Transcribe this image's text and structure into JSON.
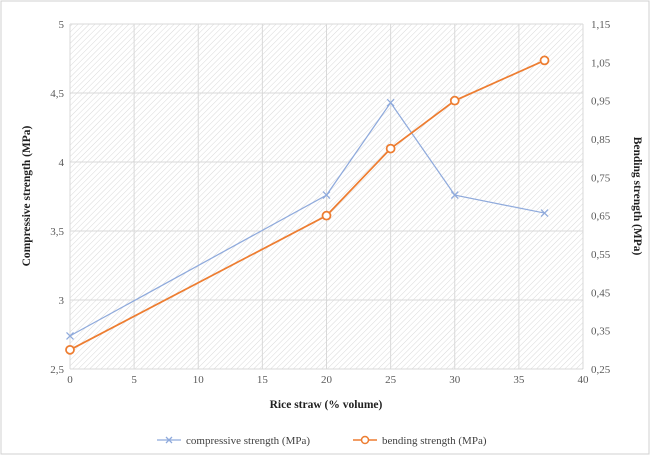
{
  "chart_data": {
    "type": "line",
    "title": "",
    "xlabel": "Rice straw (% volume)",
    "ylabel": "Compressive strength (MPa)",
    "y2label": "Bending strength (MPa)",
    "xlim": [
      0,
      40
    ],
    "ylim": [
      2.5,
      5
    ],
    "y2lim": [
      0.25,
      1.15
    ],
    "x_ticks": [
      "0",
      "5",
      "10",
      "15",
      "20",
      "25",
      "30",
      "35",
      "40"
    ],
    "y_ticks": [
      "2,5",
      "3",
      "3,5",
      "4",
      "4,5",
      "5"
    ],
    "y2_ticks": [
      "0,25",
      "0,35",
      "0,45",
      "0,55",
      "0,65",
      "0,75",
      "0,85",
      "0,95",
      "1,05",
      "1,15"
    ],
    "grid": true,
    "legend_position": "bottom",
    "series": [
      {
        "name": "compressive strength (MPa)",
        "axis": "left",
        "color": "#8faadc",
        "marker": "x",
        "points": [
          [
            0,
            2.74
          ],
          [
            20,
            3.76
          ],
          [
            25,
            4.43
          ],
          [
            30,
            3.76
          ],
          [
            37,
            3.63
          ]
        ]
      },
      {
        "name": "bending strength (MPa)",
        "axis": "right",
        "color": "#ed7d31",
        "marker": "circle",
        "points": [
          [
            0,
            0.3
          ],
          [
            20,
            0.65
          ],
          [
            25,
            0.825
          ],
          [
            30,
            0.95
          ],
          [
            37,
            1.055
          ]
        ]
      }
    ]
  }
}
